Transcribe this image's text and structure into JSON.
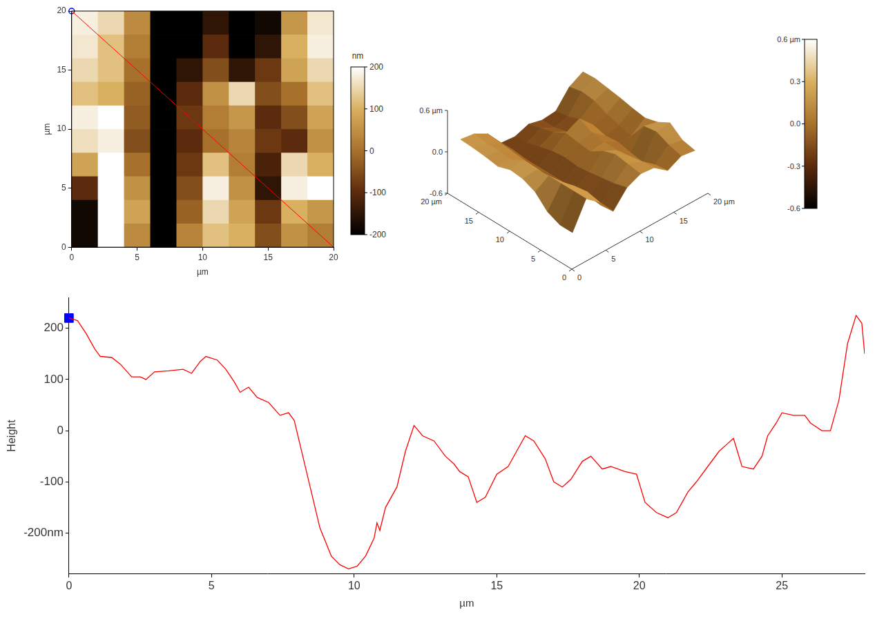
{
  "chart_data": [
    {
      "type": "heatmap",
      "x": [
        1,
        3,
        5,
        7,
        9,
        11,
        13,
        15,
        17,
        19
      ],
      "y": [
        19,
        17,
        15,
        13,
        11,
        9,
        7,
        5,
        3,
        1
      ],
      "z": [
        [
          180,
          150,
          40,
          -200,
          -220,
          -150,
          -200,
          -180,
          60,
          170
        ],
        [
          170,
          120,
          20,
          -200,
          -200,
          -100,
          -200,
          -150,
          100,
          180
        ],
        [
          150,
          120,
          0,
          -220,
          -150,
          -50,
          -150,
          -80,
          80,
          150
        ],
        [
          120,
          100,
          -20,
          -220,
          -100,
          50,
          150,
          -50,
          0,
          120
        ],
        [
          180,
          200,
          -30,
          -220,
          -80,
          20,
          60,
          -100,
          -50,
          80
        ],
        [
          160,
          180,
          -50,
          -220,
          -100,
          0,
          30,
          -80,
          -100,
          50
        ],
        [
          80,
          200,
          0,
          -200,
          -80,
          120,
          20,
          -120,
          150,
          100
        ],
        [
          -100,
          200,
          50,
          -200,
          -50,
          180,
          50,
          -150,
          180,
          200
        ],
        [
          -180,
          200,
          80,
          -220,
          -20,
          150,
          80,
          -80,
          100,
          60
        ],
        [
          -180,
          200,
          40,
          -200,
          30,
          120,
          100,
          -50,
          50,
          20
        ]
      ],
      "xlim": [
        0,
        20
      ],
      "ylim": [
        0,
        20
      ],
      "xticks": [
        0,
        5,
        10,
        15,
        20
      ],
      "yticks": [
        0,
        5,
        10,
        15,
        20
      ],
      "x_label": "µm",
      "y_label": "µm",
      "grid": false,
      "colorbar": {
        "label": "nm",
        "range": [
          -200,
          200
        ],
        "ticks": [
          -200,
          -100,
          0,
          100,
          200
        ]
      },
      "profile_line": {
        "x": [
          0,
          20
        ],
        "y": [
          20,
          0
        ],
        "color": "#ff0000",
        "line_style": "solid"
      },
      "cursor": {
        "x": 0,
        "y": 20,
        "color": "#0000ff",
        "marker": "circle"
      }
    },
    {
      "type": "surface",
      "x": [
        1,
        3,
        5,
        7,
        9,
        11,
        13,
        15,
        17,
        19
      ],
      "y": [
        19,
        17,
        15,
        13,
        11,
        9,
        7,
        5,
        3,
        1
      ],
      "z": [
        [
          180,
          150,
          40,
          -200,
          -220,
          -150,
          -200,
          -180,
          60,
          170
        ],
        [
          170,
          120,
          20,
          -200,
          -200,
          -100,
          -200,
          -150,
          100,
          180
        ],
        [
          150,
          120,
          0,
          -220,
          -150,
          -50,
          -150,
          -80,
          80,
          150
        ],
        [
          120,
          100,
          -20,
          -220,
          -100,
          50,
          150,
          -50,
          0,
          120
        ],
        [
          180,
          200,
          -30,
          -220,
          -80,
          20,
          60,
          -100,
          -50,
          80
        ],
        [
          160,
          180,
          -50,
          -220,
          -100,
          0,
          30,
          -80,
          -100,
          50
        ],
        [
          80,
          200,
          0,
          -200,
          -80,
          120,
          20,
          -120,
          150,
          100
        ],
        [
          -100,
          200,
          50,
          -200,
          -50,
          180,
          50,
          -150,
          180,
          200
        ],
        [
          -180,
          200,
          80,
          -220,
          -20,
          150,
          80,
          -80,
          100,
          60
        ],
        [
          -180,
          200,
          40,
          -200,
          30,
          120,
          100,
          -50,
          50,
          20
        ]
      ],
      "xlim": [
        0,
        20
      ],
      "ylim": [
        0,
        20
      ],
      "zlim": [
        -600,
        600
      ],
      "xticks": [
        0,
        5,
        10,
        15,
        {
          "value": 20,
          "label": "20 µm"
        }
      ],
      "yticks": [
        0,
        5,
        10,
        15,
        {
          "value": 20,
          "label": "20 µm"
        }
      ],
      "zticks": [
        {
          "value": -600,
          "label": "-0.6"
        },
        {
          "value": 0,
          "label": "0.0"
        },
        {
          "value": 600,
          "label": "0.6 µm"
        }
      ],
      "colorbar": {
        "range": [
          -600,
          600
        ],
        "ticks": [
          {
            "value": -600,
            "label": "-0.6"
          },
          {
            "value": -300,
            "label": "-0.3"
          },
          {
            "value": 0,
            "label": "0.0"
          },
          {
            "value": 300,
            "label": "0.3"
          },
          {
            "value": 600,
            "label": "0.6 µm"
          }
        ]
      }
    },
    {
      "type": "line",
      "x": [
        0,
        0.3,
        0.6,
        0.9,
        1.1,
        1.5,
        1.8,
        2.2,
        2.5,
        2.7,
        3.0,
        3.5,
        4.0,
        4.3,
        4.6,
        4.8,
        5.2,
        5.5,
        5.8,
        6.0,
        6.3,
        6.6,
        7.0,
        7.4,
        7.7,
        7.9,
        8.2,
        8.5,
        8.8,
        9.2,
        9.5,
        9.8,
        10.1,
        10.4,
        10.7,
        10.8,
        10.9,
        11.1,
        11.5,
        11.8,
        12.1,
        12.4,
        12.8,
        13.2,
        13.5,
        13.7,
        14.0,
        14.3,
        14.6,
        15.0,
        15.4,
        15.7,
        16.0,
        16.3,
        16.7,
        17.0,
        17.3,
        17.6,
        18.0,
        18.3,
        18.7,
        19.0,
        19.5,
        19.9,
        20.2,
        20.6,
        21.0,
        21.3,
        21.7,
        22.0,
        22.4,
        22.8,
        23.1,
        23.3,
        23.6,
        24.0,
        24.3,
        24.5,
        24.8,
        25.0,
        25.4,
        25.8,
        26.0,
        26.4,
        26.7,
        27.0,
        27.3,
        27.6,
        27.8,
        27.9
      ],
      "values": [
        220,
        215,
        190,
        160,
        145,
        143,
        130,
        105,
        105,
        100,
        115,
        117,
        120,
        112,
        135,
        145,
        138,
        120,
        95,
        75,
        85,
        65,
        55,
        30,
        35,
        20,
        -50,
        -120,
        -190,
        -245,
        -262,
        -270,
        -265,
        -245,
        -210,
        -180,
        -195,
        -150,
        -110,
        -40,
        10,
        -10,
        -20,
        -50,
        -65,
        -80,
        -90,
        -140,
        -130,
        -85,
        -70,
        -40,
        -10,
        -20,
        -55,
        -100,
        -110,
        -95,
        -60,
        -50,
        -75,
        -70,
        -80,
        -85,
        -140,
        -160,
        -170,
        -160,
        -120,
        -100,
        -70,
        -40,
        -25,
        -15,
        -70,
        -75,
        -50,
        -10,
        15,
        35,
        30,
        30,
        15,
        0,
        0,
        60,
        170,
        225,
        210,
        150
      ],
      "color": "#ff0000",
      "line_style": "solid",
      "xlim": [
        0,
        27.9
      ],
      "ylim": [
        -280,
        260
      ],
      "xticks": [
        0,
        5,
        10,
        15,
        20,
        25
      ],
      "yticks": [
        {
          "value": -200,
          "label": "-200nm"
        },
        -100,
        0,
        100,
        200
      ],
      "x_label": "µm",
      "y_label": "Height",
      "grid": false,
      "cursor": {
        "x": 0,
        "y": 220,
        "color": "#0000ff",
        "marker": "square"
      }
    }
  ]
}
